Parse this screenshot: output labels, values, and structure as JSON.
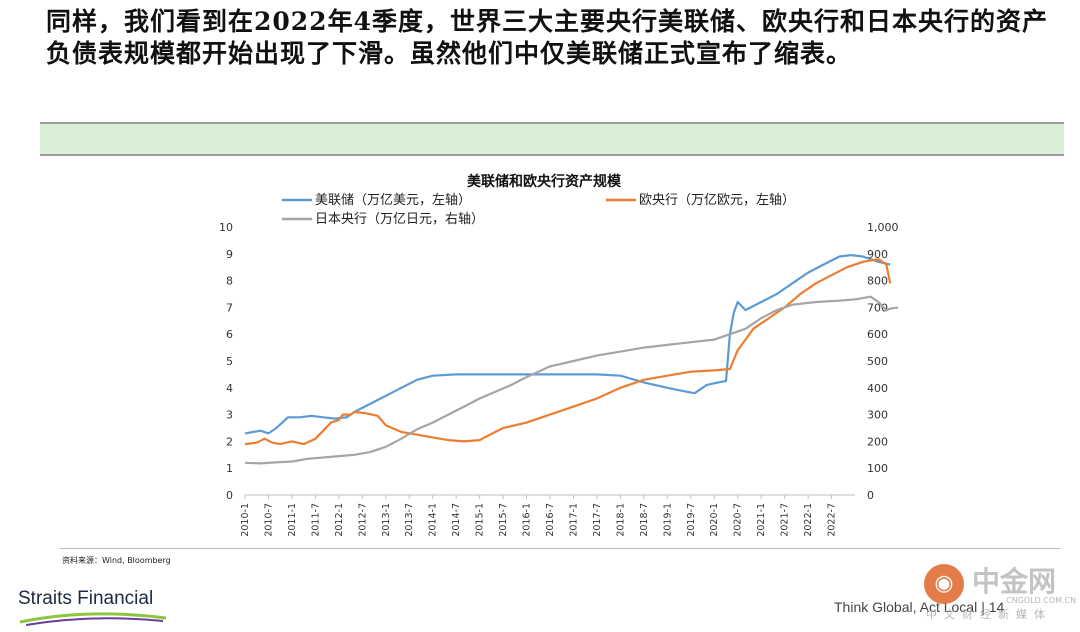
{
  "headline": "同样，我们看到在2022年4季度，世界三大主要央行美联储、欧央行和日本央行的资产负债表规模都开始出现了下滑。虽然他们中仅美联储正式宣布了缩表。",
  "source": "资料来源：Wind, Bloomberg",
  "brand": "Straits Financial",
  "footer": {
    "text": "Think Global, Act Local",
    "page": "| 14"
  },
  "watermark": {
    "name": "中金网",
    "domain": "CNGOLD.COM.CN",
    "sub": "中文财经新媒体"
  },
  "colors": {
    "fed": "#5b9bd5",
    "ecb": "#ed7d31",
    "boj": "#a5a5a5",
    "band": "#dbeed8"
  },
  "chart_data": {
    "type": "line",
    "title": "美联储和欧央行资产规模",
    "x": [
      "2010-1",
      "2010-7",
      "2011-1",
      "2011-7",
      "2012-1",
      "2012-7",
      "2013-1",
      "2013-7",
      "2014-1",
      "2014-7",
      "2015-1",
      "2015-7",
      "2016-1",
      "2016-7",
      "2017-1",
      "2017-7",
      "2018-1",
      "2018-7",
      "2019-1",
      "2019-7",
      "2020-1",
      "2020-7",
      "2021-1",
      "2021-7",
      "2022-1",
      "2022-7"
    ],
    "left_axis": {
      "ylim": [
        0,
        10
      ],
      "ticks": [
        "0",
        "1",
        "2",
        "3",
        "4",
        "5",
        "6",
        "7",
        "8",
        "9",
        "10"
      ]
    },
    "right_axis": {
      "ylim": [
        0,
        1000
      ],
      "ticks": [
        "0",
        "100",
        "200",
        "300",
        "400",
        "500",
        "600",
        "700",
        "800",
        "900",
        "1,000"
      ]
    },
    "series": [
      {
        "name": "美联储（万亿美元，左轴）",
        "axis": "left",
        "color": "#5b9bd5",
        "points": [
          [
            0,
            2.3
          ],
          [
            2,
            2.35
          ],
          [
            4,
            2.4
          ],
          [
            6,
            2.3
          ],
          [
            8,
            2.5
          ],
          [
            11,
            2.9
          ],
          [
            14,
            2.9
          ],
          [
            17,
            2.95
          ],
          [
            20,
            2.9
          ],
          [
            23,
            2.85
          ],
          [
            26,
            2.9
          ],
          [
            28,
            3.1
          ],
          [
            32,
            3.4
          ],
          [
            36,
            3.7
          ],
          [
            40,
            4.0
          ],
          [
            44,
            4.3
          ],
          [
            48,
            4.45
          ],
          [
            54,
            4.5
          ],
          [
            60,
            4.5
          ],
          [
            66,
            4.5
          ],
          [
            72,
            4.5
          ],
          [
            78,
            4.5
          ],
          [
            84,
            4.5
          ],
          [
            90,
            4.5
          ],
          [
            96,
            4.45
          ],
          [
            102,
            4.2
          ],
          [
            108,
            4.0
          ],
          [
            113,
            3.85
          ],
          [
            115,
            3.8
          ],
          [
            118,
            4.1
          ],
          [
            121,
            4.2
          ],
          [
            123,
            4.25
          ],
          [
            124,
            6.0
          ],
          [
            125,
            6.8
          ],
          [
            126,
            7.2
          ],
          [
            128,
            6.9
          ],
          [
            132,
            7.2
          ],
          [
            136,
            7.5
          ],
          [
            140,
            7.9
          ],
          [
            144,
            8.3
          ],
          [
            148,
            8.6
          ],
          [
            152,
            8.9
          ],
          [
            155,
            8.95
          ],
          [
            158,
            8.9
          ],
          [
            162,
            8.7
          ],
          [
            165,
            8.6
          ]
        ]
      },
      {
        "name": "欧央行（万亿欧元，左轴）",
        "axis": "left",
        "color": "#ed7d31",
        "points": [
          [
            0,
            1.9
          ],
          [
            3,
            1.95
          ],
          [
            5,
            2.1
          ],
          [
            7,
            1.95
          ],
          [
            9,
            1.9
          ],
          [
            12,
            2.0
          ],
          [
            15,
            1.9
          ],
          [
            18,
            2.1
          ],
          [
            20,
            2.4
          ],
          [
            22,
            2.7
          ],
          [
            24,
            2.8
          ],
          [
            25,
            3.0
          ],
          [
            27,
            3.0
          ],
          [
            28,
            3.1
          ],
          [
            31,
            3.05
          ],
          [
            34,
            2.95
          ],
          [
            36,
            2.6
          ],
          [
            40,
            2.35
          ],
          [
            44,
            2.25
          ],
          [
            48,
            2.15
          ],
          [
            52,
            2.05
          ],
          [
            56,
            2.0
          ],
          [
            60,
            2.05
          ],
          [
            62,
            2.2
          ],
          [
            66,
            2.5
          ],
          [
            72,
            2.7
          ],
          [
            78,
            3.0
          ],
          [
            84,
            3.3
          ],
          [
            90,
            3.6
          ],
          [
            96,
            4.0
          ],
          [
            102,
            4.3
          ],
          [
            108,
            4.45
          ],
          [
            114,
            4.6
          ],
          [
            120,
            4.65
          ],
          [
            124,
            4.7
          ],
          [
            126,
            5.4
          ],
          [
            128,
            5.8
          ],
          [
            130,
            6.2
          ],
          [
            134,
            6.6
          ],
          [
            138,
            7.0
          ],
          [
            142,
            7.5
          ],
          [
            146,
            7.9
          ],
          [
            150,
            8.2
          ],
          [
            154,
            8.5
          ],
          [
            158,
            8.7
          ],
          [
            162,
            8.8
          ],
          [
            164,
            8.6
          ],
          [
            165,
            7.9
          ]
        ]
      },
      {
        "name": "日本央行（万亿日元，右轴）",
        "axis": "right",
        "color": "#a5a5a5",
        "points": [
          [
            0,
            120
          ],
          [
            4,
            118
          ],
          [
            8,
            122
          ],
          [
            12,
            125
          ],
          [
            16,
            135
          ],
          [
            20,
            140
          ],
          [
            24,
            145
          ],
          [
            28,
            150
          ],
          [
            32,
            160
          ],
          [
            36,
            180
          ],
          [
            40,
            210
          ],
          [
            44,
            245
          ],
          [
            48,
            270
          ],
          [
            52,
            300
          ],
          [
            56,
            330
          ],
          [
            60,
            360
          ],
          [
            64,
            385
          ],
          [
            68,
            410
          ],
          [
            72,
            440
          ],
          [
            78,
            480
          ],
          [
            84,
            500
          ],
          [
            90,
            520
          ],
          [
            96,
            535
          ],
          [
            102,
            550
          ],
          [
            108,
            560
          ],
          [
            114,
            570
          ],
          [
            120,
            580
          ],
          [
            124,
            600
          ],
          [
            128,
            620
          ],
          [
            132,
            660
          ],
          [
            136,
            690
          ],
          [
            140,
            710
          ],
          [
            146,
            720
          ],
          [
            152,
            725
          ],
          [
            156,
            730
          ],
          [
            160,
            740
          ],
          [
            162,
            720
          ],
          [
            164,
            690
          ],
          [
            165,
            695
          ],
          [
            167,
            700
          ]
        ]
      }
    ]
  }
}
